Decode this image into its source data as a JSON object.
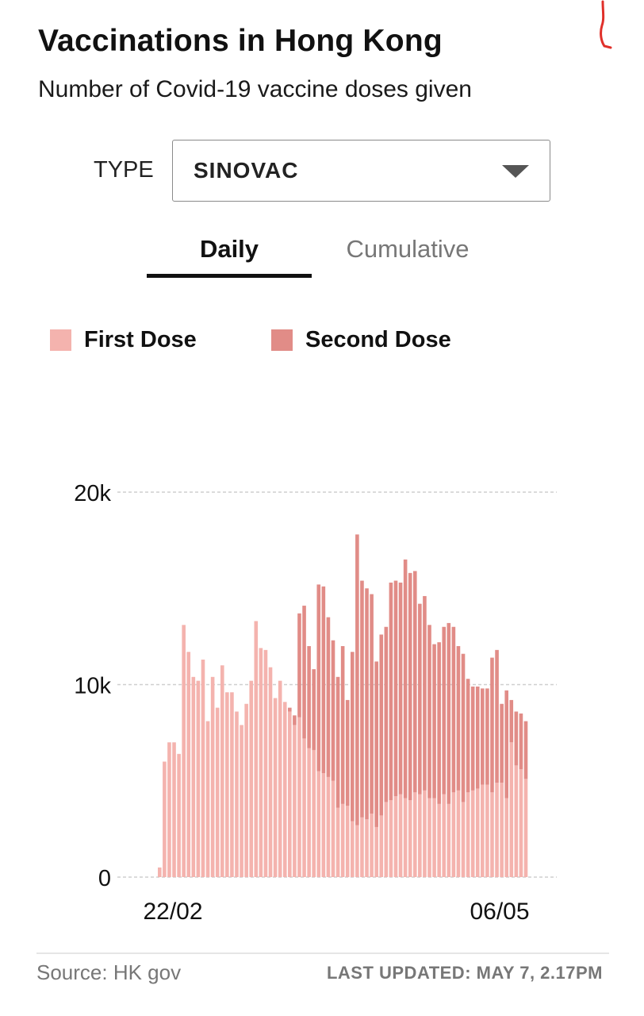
{
  "header": {
    "title": "Vaccinations in Hong Kong",
    "subtitle": "Number of Covid-19 vaccine doses given"
  },
  "filter": {
    "label": "TYPE",
    "selected": "SINOVAC"
  },
  "tabs": [
    {
      "label": "Daily",
      "active": true
    },
    {
      "label": "Cumulative",
      "active": false
    }
  ],
  "legend": [
    {
      "label": "First Dose",
      "color": "#f4b3ae"
    },
    {
      "label": "Second Dose",
      "color": "#e18c87"
    }
  ],
  "footer": {
    "source": "Source: HK gov",
    "updated": "LAST UPDATED: MAY 7, 2.17PM"
  },
  "colors": {
    "first_dose": "#f4b3ae",
    "second_dose": "#e18c87",
    "grid": "#cfcfcf",
    "annotation_mark": "#e0302a"
  },
  "chart_data": {
    "type": "bar",
    "stacked": true,
    "x_tick_labels": [
      "22/02",
      "06/05"
    ],
    "y_tick_labels": [
      "0",
      "10k",
      "20k"
    ],
    "ylim": [
      0,
      20000
    ],
    "grid": true,
    "legend_placement": "top",
    "series": [
      {
        "name": "First Dose",
        "values": [
          500,
          6000,
          7000,
          7000,
          6400,
          13100,
          11700,
          10400,
          10200,
          11300,
          8100,
          10400,
          8800,
          11000,
          9600,
          9600,
          8600,
          7900,
          9000,
          10200,
          13300,
          11900,
          11800,
          10900,
          9300,
          10200,
          9100,
          8600,
          7900,
          8300,
          7200,
          6700,
          6600,
          5500,
          5400,
          5200,
          5000,
          3600,
          3800,
          3700,
          2900,
          2700,
          3100,
          3000,
          3300,
          2600,
          3200,
          3900,
          4000,
          4200,
          4300,
          4100,
          4000,
          4400,
          4300,
          4500,
          4100,
          4100,
          3800,
          4300,
          3800,
          4400,
          4500,
          3900,
          4400,
          4500,
          4600,
          4800,
          4800,
          4400,
          4900,
          4900,
          4100,
          7000,
          5800,
          5600,
          5100
        ]
      },
      {
        "name": "Second Dose",
        "values": [
          0,
          0,
          0,
          0,
          0,
          0,
          0,
          0,
          0,
          0,
          0,
          0,
          0,
          0,
          0,
          0,
          0,
          0,
          0,
          0,
          0,
          0,
          0,
          0,
          0,
          0,
          0,
          200,
          500,
          5400,
          6900,
          5300,
          4200,
          9700,
          9700,
          8300,
          7300,
          6800,
          8200,
          5500,
          8800,
          15100,
          12300,
          12000,
          11400,
          8600,
          9400,
          9100,
          11300,
          11200,
          11000,
          12400,
          11800,
          11500,
          9900,
          10100,
          9000,
          8000,
          8400,
          8700,
          9400,
          8600,
          7500,
          7700,
          5900,
          5400,
          5300,
          5000,
          5000,
          7000,
          6900,
          4100,
          5600,
          2200,
          2800,
          2900,
          3000
        ]
      }
    ]
  }
}
